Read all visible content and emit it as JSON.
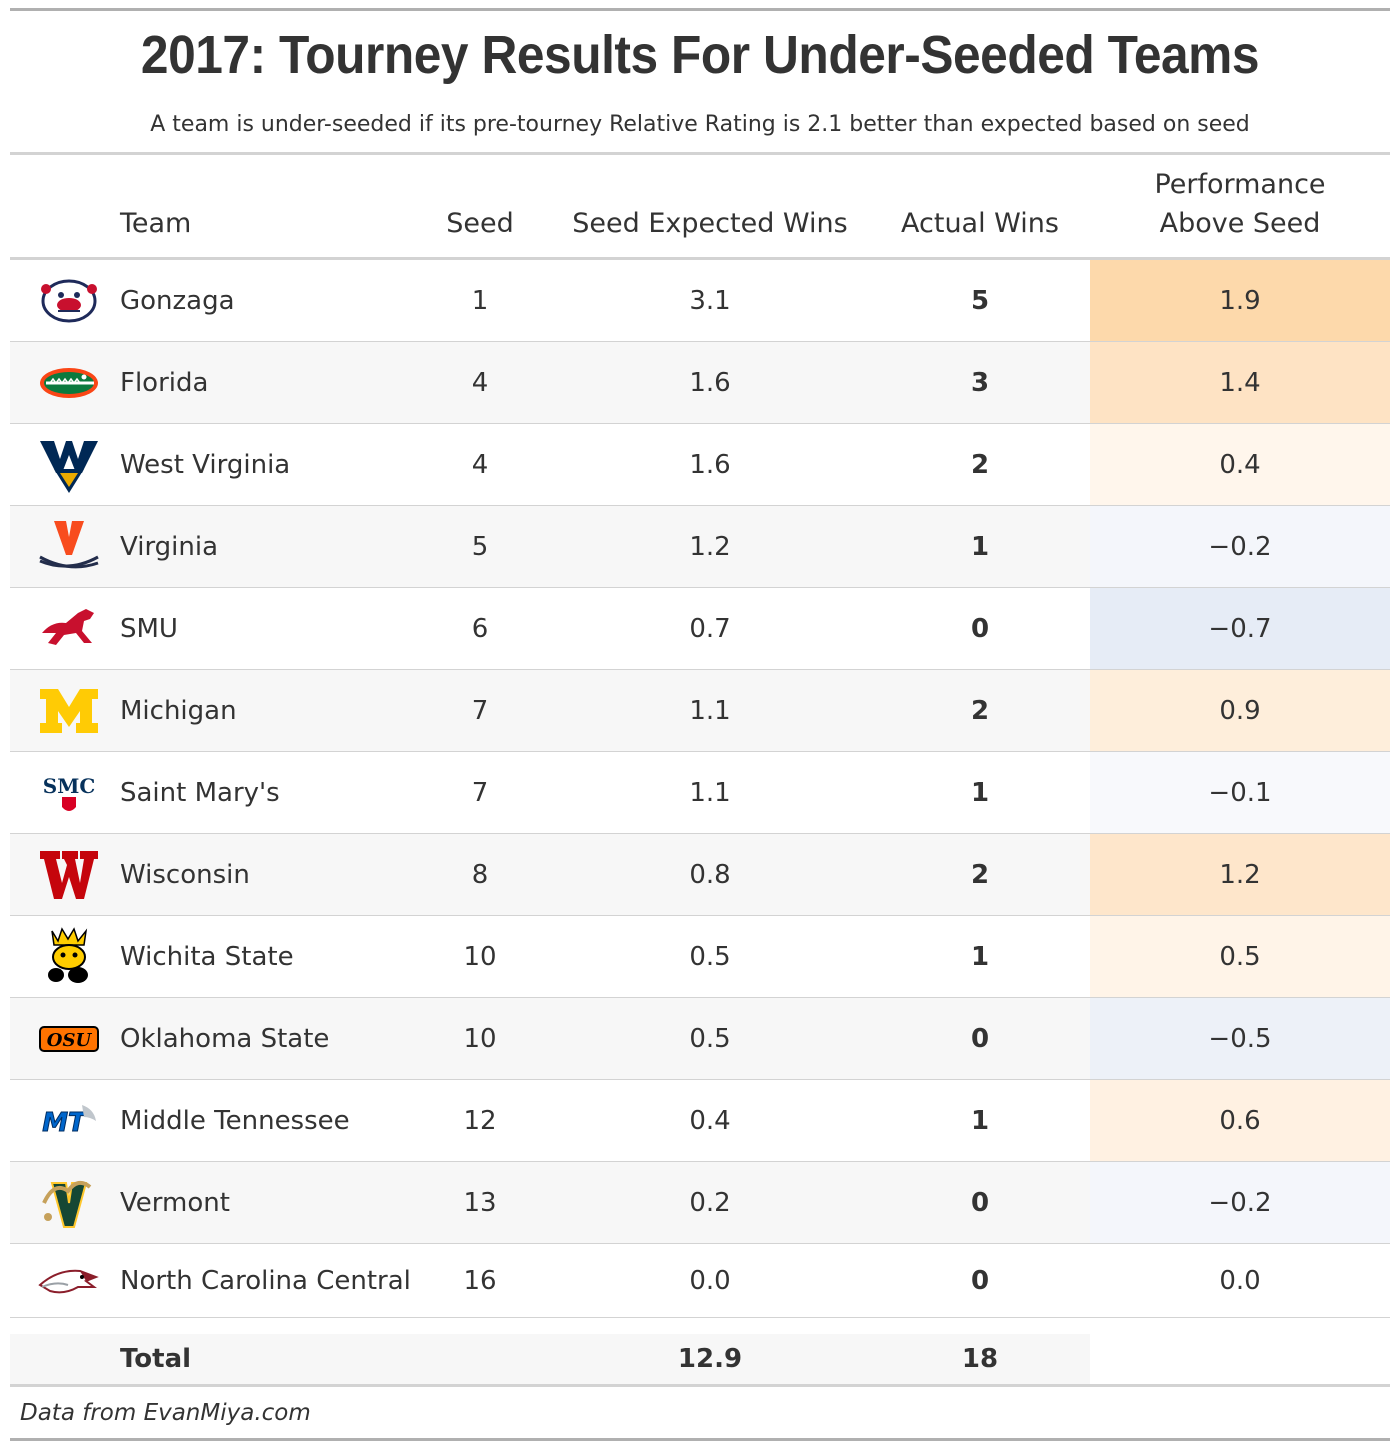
{
  "title": "2017: Tourney Results For Under-Seeded Teams",
  "subtitle": "A team is under-seeded if its pre-tourney Relative Rating is 2.1 better than expected based on seed",
  "columns": {
    "team": "Team",
    "seed": "Seed",
    "expected": "Seed Expected Wins",
    "actual": "Actual Wins",
    "performance_line1": "Performance",
    "performance_line2": "Above Seed"
  },
  "rows": [
    {
      "team": "Gonzaga",
      "seed": "1",
      "expected": "3.1",
      "actual": "5",
      "performance": "1.9",
      "logo": "gonzaga-bulldog-logo",
      "perf_color": "#fdd9ab"
    },
    {
      "team": "Florida",
      "seed": "4",
      "expected": "1.6",
      "actual": "3",
      "performance": "1.4",
      "logo": "florida-gator-logo",
      "perf_color": "#fee3c4"
    },
    {
      "team": "West Virginia",
      "seed": "4",
      "expected": "1.6",
      "actual": "2",
      "performance": "0.4",
      "logo": "west-virginia-wv-logo",
      "perf_color": "#fff6ec"
    },
    {
      "team": "Virginia",
      "seed": "5",
      "expected": "1.2",
      "actual": "1",
      "performance": "−0.2",
      "logo": "virginia-v-sabres-logo",
      "perf_color": "#f4f6fb"
    },
    {
      "team": "SMU",
      "seed": "6",
      "expected": "0.7",
      "actual": "0",
      "performance": "−0.7",
      "logo": "smu-mustang-logo",
      "perf_color": "#e6ecf6"
    },
    {
      "team": "Michigan",
      "seed": "7",
      "expected": "1.1",
      "actual": "2",
      "performance": "0.9",
      "logo": "michigan-block-m-logo",
      "perf_color": "#feeedb"
    },
    {
      "team": "Saint Mary's",
      "seed": "7",
      "expected": "1.1",
      "actual": "1",
      "performance": "−0.1",
      "logo": "saint-marys-smc-logo",
      "perf_color": "#f8f9fc"
    },
    {
      "team": "Wisconsin",
      "seed": "8",
      "expected": "0.8",
      "actual": "2",
      "performance": "1.2",
      "logo": "wisconsin-motion-w-logo",
      "perf_color": "#fee6cb"
    },
    {
      "team": "Wichita State",
      "seed": "10",
      "expected": "0.5",
      "actual": "1",
      "performance": "0.5",
      "logo": "wichita-state-shocker-logo",
      "perf_color": "#fff4e8"
    },
    {
      "team": "Oklahoma State",
      "seed": "10",
      "expected": "0.5",
      "actual": "0",
      "performance": "−0.5",
      "logo": "oklahoma-state-osu-logo",
      "perf_color": "#edf1f8"
    },
    {
      "team": "Middle Tennessee",
      "seed": "12",
      "expected": "0.4",
      "actual": "1",
      "performance": "0.6",
      "logo": "middle-tennessee-mt-logo",
      "perf_color": "#fff1e2"
    },
    {
      "team": "Vermont",
      "seed": "13",
      "expected": "0.2",
      "actual": "0",
      "performance": "−0.2",
      "logo": "vermont-catamount-logo",
      "perf_color": "#f4f6fb"
    },
    {
      "team": "North Carolina Central",
      "seed": "16",
      "expected": "0.0",
      "actual": "0",
      "performance": "0.0",
      "logo": "nccu-eagle-logo",
      "perf_color": "#ffffff"
    }
  ],
  "total": {
    "label": "Total",
    "expected": "12.9",
    "actual": "18"
  },
  "source": "Data from EvanMiya.com"
}
